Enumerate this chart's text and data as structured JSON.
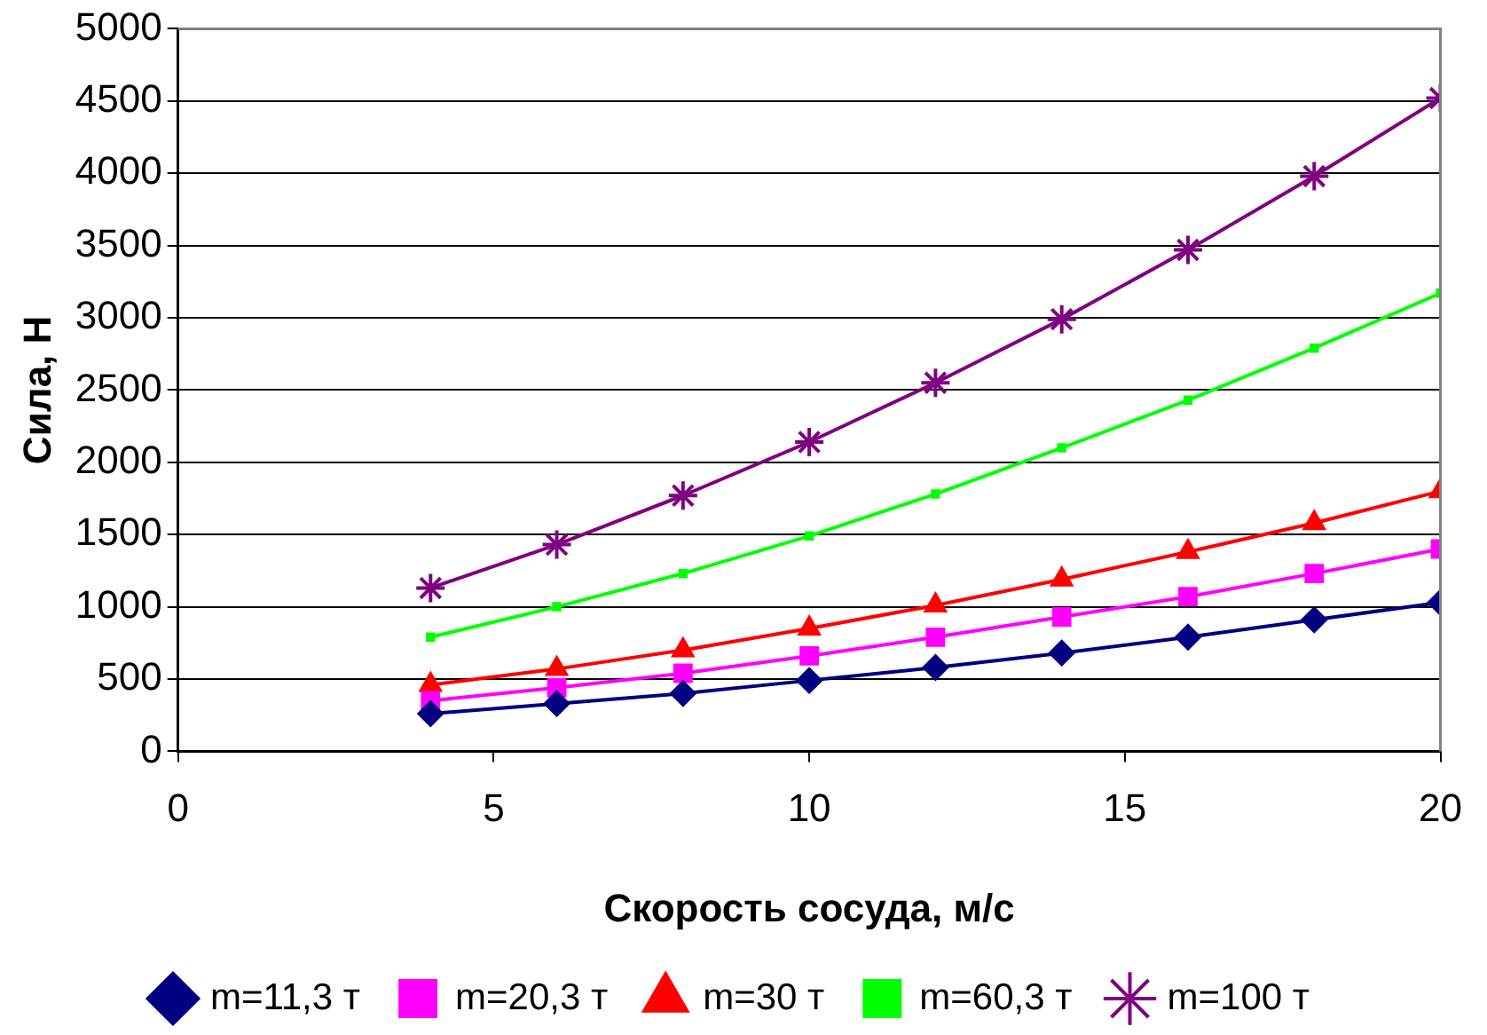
{
  "chart_data": {
    "type": "line",
    "xlabel": "Скорость сосуда, м/с",
    "ylabel": "Сила, Н",
    "x": [
      4,
      6,
      8,
      10,
      12,
      14,
      16,
      18,
      20
    ],
    "series": [
      {
        "name": "m=11,3 т",
        "color": "#000080",
        "marker": "diamond",
        "values": [
          260,
          330,
          400,
          490,
          580,
          680,
          790,
          910,
          1030
        ]
      },
      {
        "name": "m=20,3 т",
        "color": "#ff00ff",
        "marker": "square",
        "values": [
          350,
          440,
          540,
          660,
          790,
          930,
          1070,
          1230,
          1400
        ]
      },
      {
        "name": "m=30 т",
        "color": "#ff0000",
        "marker": "triangle",
        "values": [
          460,
          570,
          700,
          850,
          1010,
          1190,
          1380,
          1580,
          1800
        ]
      },
      {
        "name": "m=60,3 т",
        "color": "#00ff00",
        "marker": "square",
        "values": [
          790,
          1000,
          1230,
          1490,
          1780,
          2100,
          2430,
          2790,
          3170
        ]
      },
      {
        "name": "m=100 т",
        "color": "#800080",
        "marker": "cross",
        "values": [
          1130,
          1430,
          1770,
          2140,
          2550,
          2990,
          3470,
          3980,
          4520
        ]
      }
    ],
    "xlim": [
      0,
      20
    ],
    "xticks": [
      0,
      5,
      10,
      15,
      20
    ],
    "ylim": [
      0,
      5000
    ],
    "yticks": [
      0,
      500,
      1000,
      1500,
      2000,
      2500,
      3000,
      3500,
      4000,
      4500,
      5000
    ],
    "grid": "y",
    "legend": "bottom"
  }
}
